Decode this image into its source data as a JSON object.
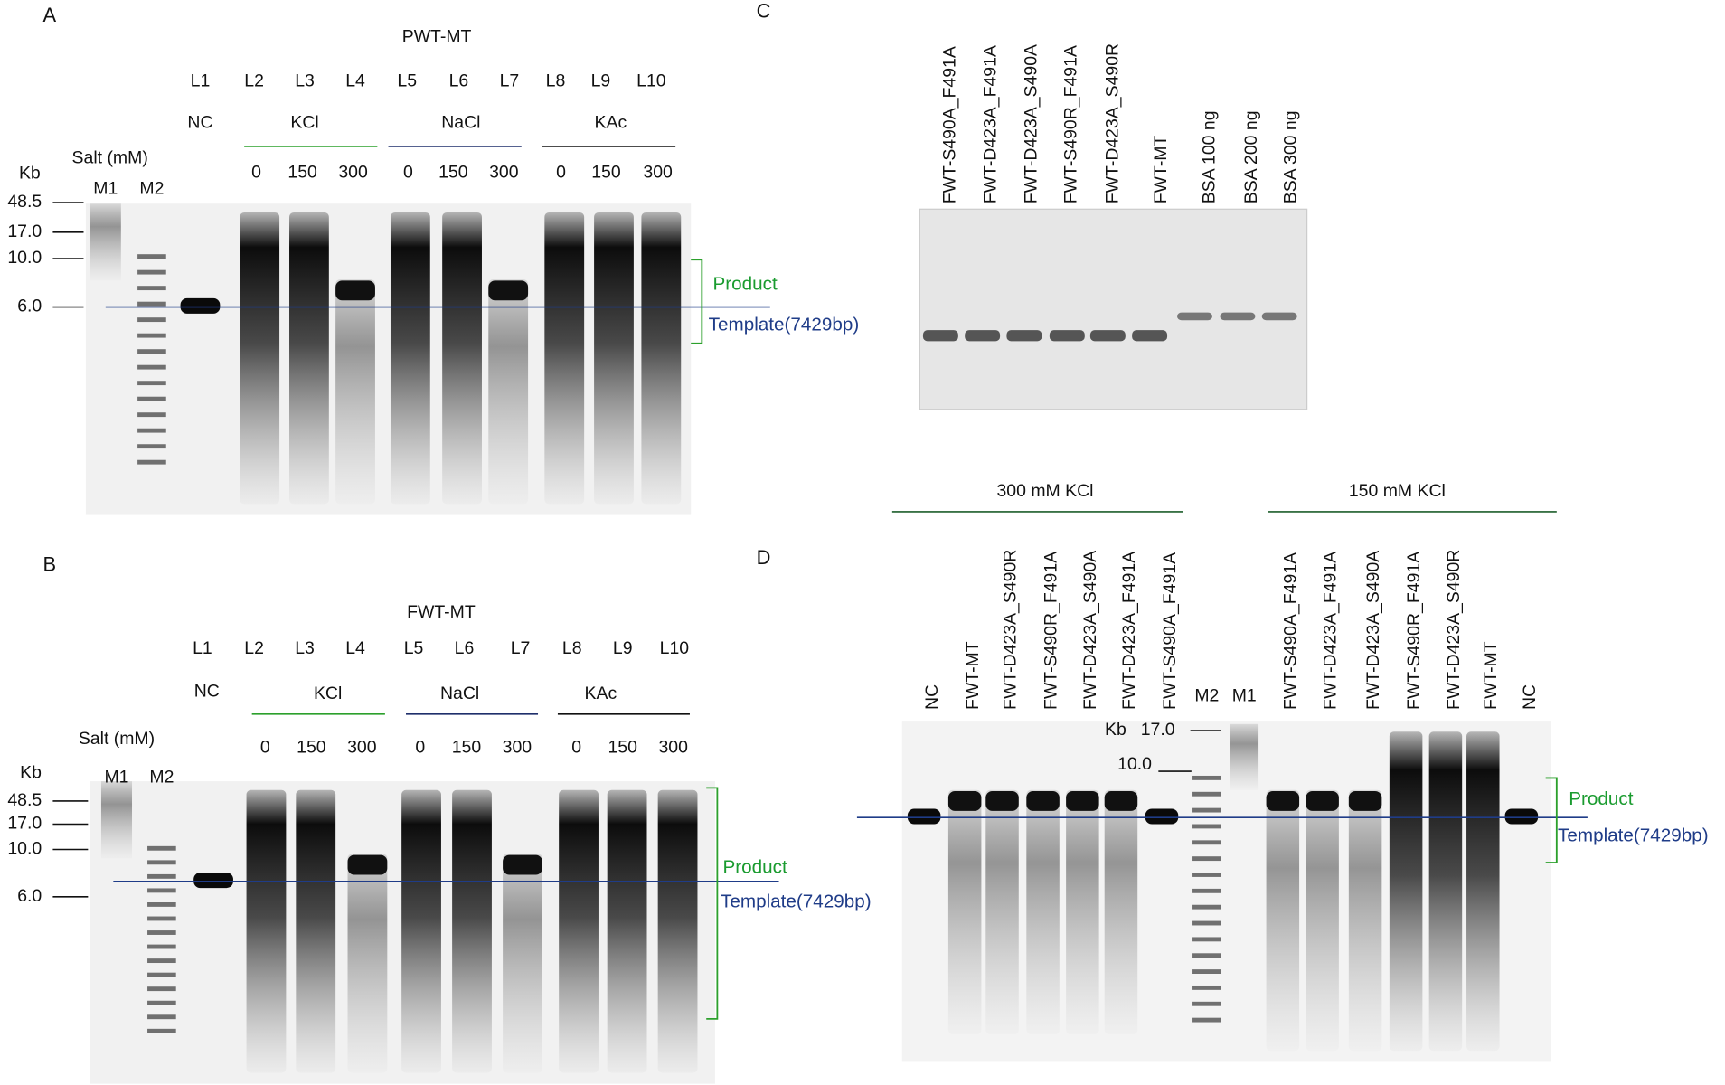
{
  "panels": [
    {
      "label": "A",
      "construct": "PWT-MT",
      "lanes": [
        "L1",
        "L2",
        "L3",
        "L4",
        "L5",
        "L6",
        "L7",
        "L8",
        "L9",
        "L10"
      ],
      "control": "NC",
      "groups": [
        {
          "name": "KCl",
          "concs": [
            "0",
            "150",
            "300"
          ]
        },
        {
          "name": "NaCl",
          "concs": [
            "0",
            "150",
            "300"
          ]
        },
        {
          "name": "KAc",
          "concs": [
            "0",
            "150",
            "300"
          ]
        }
      ],
      "salt_label": "Salt (mM)",
      "size_unit": "Kb",
      "markers": [
        "M1",
        "M2"
      ],
      "sizes": [
        "48.5",
        "17.0",
        "10.0",
        "6.0"
      ],
      "product": "Product",
      "template": "Template(7429bp)"
    },
    {
      "label": "B",
      "construct": "FWT-MT",
      "lanes": [
        "L1",
        "L2",
        "L3",
        "L4",
        "L5",
        "L6",
        "L7",
        "L8",
        "L9",
        "L10"
      ],
      "control": "NC",
      "groups": [
        {
          "name": "KCl",
          "concs": [
            "0",
            "150",
            "300"
          ]
        },
        {
          "name": "NaCl",
          "concs": [
            "0",
            "150",
            "300"
          ]
        },
        {
          "name": "KAc",
          "concs": [
            "0",
            "150",
            "300"
          ]
        }
      ],
      "salt_label": "Salt (mM)",
      "size_unit": "Kb",
      "markers": [
        "M1",
        "M2"
      ],
      "sizes": [
        "48.5",
        "17.0",
        "10.0",
        "6.0"
      ],
      "product": "Product",
      "template": "Template(7429bp)"
    }
  ],
  "panel_c": {
    "label": "C",
    "lanes": [
      "FWT-S490A_F491A",
      "FWT-D423A_F491A",
      "FWT-D423A_S490A",
      "FWT-S490R_F491A",
      "FWT-D423A_S490R",
      "FWT-MT",
      "BSA 100 ng",
      "BSA 200 ng",
      "BSA 300 ng"
    ]
  },
  "panel_d": {
    "label": "D",
    "groups": [
      "300 mM KCl",
      "150 mM KCl"
    ],
    "lanes_left": [
      "NC",
      "FWT-MT",
      "FWT-D423A_S490R",
      "FWT-S490R_F491A",
      "FWT-D423A_S490A",
      "FWT-D423A_F491A",
      "FWT-S490A_F491A"
    ],
    "markers": [
      "M2",
      "M1"
    ],
    "size_unit": "Kb",
    "sizes": [
      "17.0",
      "10.0"
    ],
    "lanes_right": [
      "FWT-S490A_F491A",
      "FWT-D423A_F491A",
      "FWT-D423A_S490A",
      "FWT-S490R_F491A",
      "FWT-D423A_S490R",
      "FWT-MT",
      "NC"
    ],
    "product": "Product",
    "template": "Template(7429bp)"
  }
}
